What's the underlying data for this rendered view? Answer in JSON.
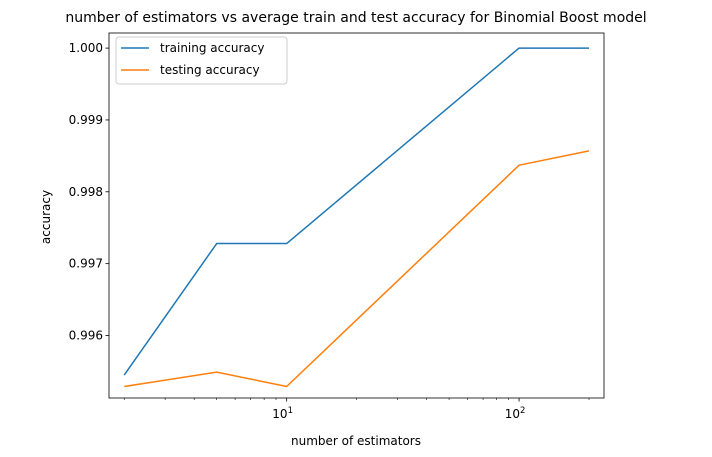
{
  "chart_data": {
    "type": "line",
    "title": "number of estimators vs average train and test accuracy for Binomial Boost model",
    "xlabel": "number of estimators",
    "ylabel": "accuracy",
    "xscale": "log",
    "xlim": [
      1.72,
      232
    ],
    "ylim": [
      0.99513,
      1.00021
    ],
    "x": [
      2,
      5,
      10,
      100,
      200
    ],
    "x_ticks": [
      {
        "value": 10,
        "label": "10^1"
      },
      {
        "value": 100,
        "label": "10^2"
      }
    ],
    "y_ticks": [
      0.996,
      0.997,
      0.998,
      0.999,
      1.0
    ],
    "y_tick_labels": [
      "0.996",
      "0.997",
      "0.998",
      "0.999",
      "1.000"
    ],
    "grid": false,
    "legend_position": "upper-left",
    "series": [
      {
        "name": "training accuracy",
        "color": "#1f77b4",
        "values": [
          0.99545,
          0.99728,
          0.99728,
          1.0,
          1.0
        ]
      },
      {
        "name": "testing accuracy",
        "color": "#ff7f0e",
        "values": [
          0.99529,
          0.99549,
          0.99529,
          0.99837,
          0.99857
        ]
      }
    ]
  }
}
